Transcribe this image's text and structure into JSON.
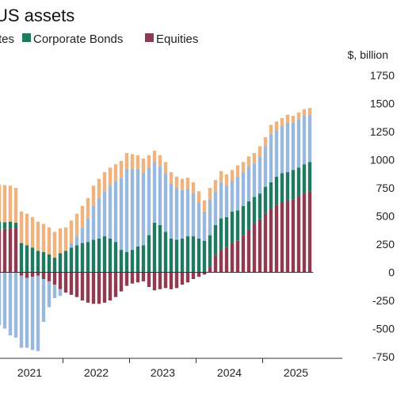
{
  "chart_data": {
    "type": "bar",
    "stacked": true,
    "title": "US assets",
    "ylabel": "$, billion",
    "ylim": [
      -750,
      1750
    ],
    "yticks": [
      1750,
      1500,
      1250,
      1000,
      750,
      500,
      250,
      0,
      -250,
      -500,
      -750
    ],
    "xticks": [
      "2020",
      "2021",
      "2022",
      "2023",
      "2024",
      "2025"
    ],
    "legend": [
      {
        "label": "tes",
        "color": "#f0b37e"
      },
      {
        "label": "Corporate Bonds",
        "color": "#1f7a60"
      },
      {
        "label": "Equities",
        "color": "#8f3a51"
      }
    ],
    "colors": {
      "equities": "#8f3a51",
      "corporate_bonds": "#1f7a60",
      "treasuries": "#98b9dd",
      "agencies": "#f0b37e"
    },
    "start_month": "2020-09",
    "series": [
      {
        "name": "Equities",
        "values": [
          310,
          330,
          350,
          370,
          380,
          385,
          390,
          390,
          -30,
          -50,
          -40,
          -30,
          -60,
          -80,
          -110,
          -150,
          -180,
          -200,
          -220,
          -250,
          -270,
          -280,
          -280,
          -270,
          -250,
          -220,
          -170,
          -120,
          -100,
          -90,
          -80,
          -130,
          -160,
          -150,
          -140,
          -150,
          -140,
          -110,
          -90,
          -60,
          -40,
          -20,
          50,
          150,
          200,
          220,
          260,
          280,
          330,
          380,
          430,
          470,
          520,
          560,
          600,
          620,
          640,
          650,
          680,
          700,
          720
        ]
      },
      {
        "name": "Corporate Bonds",
        "values": [
          120,
          120,
          100,
          80,
          70,
          60,
          60,
          50,
          260,
          240,
          220,
          190,
          180,
          160,
          130,
          170,
          190,
          220,
          240,
          260,
          270,
          290,
          300,
          320,
          300,
          270,
          200,
          180,
          200,
          230,
          240,
          330,
          440,
          420,
          360,
          300,
          290,
          300,
          320,
          320,
          300,
          280,
          280,
          270,
          280,
          270,
          280,
          270,
          260,
          250,
          240,
          230,
          240,
          240,
          250,
          260,
          250,
          260,
          250,
          260,
          260
        ]
      },
      {
        "name": "Treasuries",
        "values": [
          -300,
          -350,
          -380,
          -420,
          -470,
          -500,
          -560,
          -580,
          -640,
          -620,
          -650,
          -670,
          -380,
          -230,
          -120,
          -60,
          0,
          40,
          80,
          140,
          210,
          300,
          360,
          400,
          470,
          540,
          640,
          740,
          720,
          690,
          650,
          600,
          540,
          520,
          520,
          490,
          460,
          430,
          420,
          380,
          320,
          260,
          320,
          300,
          320,
          280,
          270,
          300,
          300,
          310,
          300,
          330,
          360,
          430,
          410,
          420,
          440,
          420,
          430,
          430,
          420
        ]
      },
      {
        "name": "Agencies",
        "values": [
          290,
          300,
          310,
          320,
          330,
          330,
          320,
          310,
          280,
          280,
          270,
          260,
          250,
          240,
          230,
          220,
          210,
          200,
          200,
          190,
          180,
          180,
          170,
          170,
          160,
          150,
          150,
          140,
          130,
          120,
          120,
          110,
          100,
          100,
          100,
          100,
          100,
          100,
          100,
          100,
          100,
          100,
          100,
          100,
          100,
          100,
          100,
          100,
          90,
          90,
          90,
          90,
          80,
          80,
          80,
          70,
          70,
          60,
          60,
          60,
          60
        ]
      }
    ]
  }
}
